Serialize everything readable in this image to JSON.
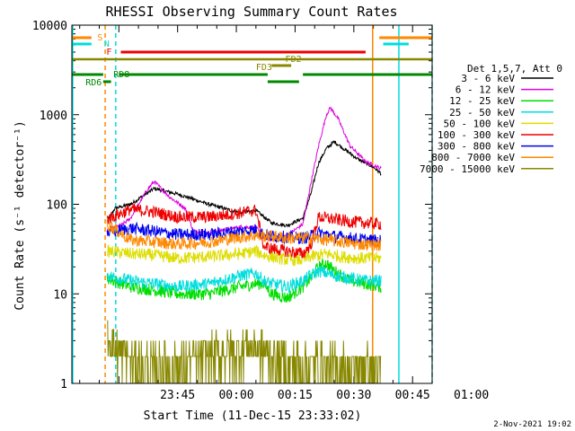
{
  "chart_data": {
    "type": "line",
    "title": "RHESSI Observing Summary Count Rates",
    "xlabel": "Start Time (11-Dec-15 23:33:02)",
    "ylabel": "Count Rate (s⁻¹ detector⁻¹)",
    "y_scale": "log",
    "ylim": [
      1,
      10000
    ],
    "xlim_minutes": [
      -15,
      77
    ],
    "x_tick_labels": [
      "23:45",
      "00:00",
      "00:15",
      "00:30",
      "00:45",
      "01:00"
    ],
    "x_tick_minutes": [
      12,
      27,
      42,
      57,
      72,
      87
    ],
    "y_tick_labels": [
      "1",
      "10",
      "100",
      "1000",
      "10000"
    ],
    "y_tick_values": [
      1,
      10,
      100,
      1000,
      10000
    ],
    "legend_title": "Det 1,5,7, Att 0",
    "legend_position": "right",
    "timestamp": "2-Nov-2021 19:02",
    "series": [
      {
        "name": "3 - 6 keV",
        "color": "#000000",
        "points": [
          [
            -6,
            65
          ],
          [
            -4,
            90
          ],
          [
            0,
            100
          ],
          [
            6,
            150
          ],
          [
            12,
            130
          ],
          [
            20,
            100
          ],
          [
            28,
            80
          ],
          [
            32,
            85
          ],
          [
            36,
            62
          ],
          [
            40,
            58
          ],
          [
            44,
            70
          ],
          [
            46,
            130
          ],
          [
            48,
            290
          ],
          [
            50,
            420
          ],
          [
            52,
            500
          ],
          [
            55,
            400
          ],
          [
            58,
            320
          ],
          [
            62,
            260
          ],
          [
            64,
            220
          ]
        ]
      },
      {
        "name": "6 - 12 keV",
        "color": "#dd00dd",
        "points": [
          [
            -6,
            50
          ],
          [
            -2,
            60
          ],
          [
            0,
            70
          ],
          [
            4,
            140
          ],
          [
            6,
            180
          ],
          [
            10,
            120
          ],
          [
            14,
            90
          ],
          [
            16,
            50
          ],
          [
            20,
            48
          ],
          [
            24,
            52
          ],
          [
            28,
            56
          ],
          [
            32,
            55
          ],
          [
            34,
            45
          ],
          [
            36,
            40
          ],
          [
            40,
            45
          ],
          [
            44,
            60
          ],
          [
            46,
            170
          ],
          [
            48,
            450
          ],
          [
            50,
            1000
          ],
          [
            51,
            1200
          ],
          [
            53,
            900
          ],
          [
            56,
            450
          ],
          [
            60,
            300
          ],
          [
            64,
            250
          ]
        ]
      },
      {
        "name": "12 - 25 keV",
        "color": "#00dd00",
        "points": [
          [
            -6,
            15
          ],
          [
            0,
            12
          ],
          [
            6,
            11
          ],
          [
            12,
            10
          ],
          [
            20,
            10
          ],
          [
            28,
            12
          ],
          [
            32,
            13
          ],
          [
            34,
            13
          ],
          [
            36,
            10
          ],
          [
            40,
            9
          ],
          [
            44,
            12
          ],
          [
            46,
            15
          ],
          [
            48,
            20
          ],
          [
            50,
            22
          ],
          [
            52,
            18
          ],
          [
            56,
            14
          ],
          [
            60,
            13
          ],
          [
            64,
            12
          ]
        ]
      },
      {
        "name": "25 - 50 keV",
        "color": "#00dddd",
        "points": [
          [
            -6,
            16
          ],
          [
            0,
            14
          ],
          [
            6,
            13
          ],
          [
            12,
            12
          ],
          [
            20,
            13
          ],
          [
            28,
            16
          ],
          [
            32,
            17
          ],
          [
            34,
            14
          ],
          [
            36,
            13
          ],
          [
            40,
            12
          ],
          [
            44,
            14
          ],
          [
            46,
            16
          ],
          [
            48,
            18
          ],
          [
            52,
            16
          ],
          [
            56,
            15
          ],
          [
            60,
            14
          ],
          [
            64,
            14
          ]
        ]
      },
      {
        "name": "50 - 100 keV",
        "color": "#dddd00",
        "points": [
          [
            -6,
            30
          ],
          [
            0,
            28
          ],
          [
            6,
            27
          ],
          [
            12,
            25
          ],
          [
            20,
            26
          ],
          [
            28,
            28
          ],
          [
            32,
            30
          ],
          [
            34,
            27
          ],
          [
            36,
            26
          ],
          [
            40,
            24
          ],
          [
            44,
            24
          ],
          [
            46,
            26
          ],
          [
            50,
            28
          ],
          [
            54,
            26
          ],
          [
            58,
            25
          ],
          [
            64,
            25
          ]
        ]
      },
      {
        "name": "100 - 300 keV",
        "color": "#ee0000",
        "points": [
          [
            -6,
            68
          ],
          [
            0,
            88
          ],
          [
            6,
            82
          ],
          [
            12,
            72
          ],
          [
            20,
            72
          ],
          [
            28,
            80
          ],
          [
            32,
            86
          ],
          [
            34,
            34
          ],
          [
            36,
            32
          ],
          [
            40,
            30
          ],
          [
            44,
            28
          ],
          [
            46,
            35
          ],
          [
            48,
            72
          ],
          [
            52,
            68
          ],
          [
            56,
            64
          ],
          [
            60,
            62
          ],
          [
            64,
            60
          ]
        ]
      },
      {
        "name": "300 - 800 keV",
        "color": "#0000ee",
        "points": [
          [
            -6,
            48
          ],
          [
            0,
            54
          ],
          [
            6,
            50
          ],
          [
            12,
            46
          ],
          [
            20,
            46
          ],
          [
            28,
            50
          ],
          [
            32,
            52
          ],
          [
            34,
            46
          ],
          [
            36,
            44
          ],
          [
            40,
            43
          ],
          [
            44,
            42
          ],
          [
            46,
            44
          ],
          [
            48,
            48
          ],
          [
            52,
            44
          ],
          [
            56,
            42
          ],
          [
            60,
            40
          ],
          [
            64,
            39
          ]
        ]
      },
      {
        "name": "800 - 7000 keV",
        "color": "#ff8800",
        "points": [
          [
            -6,
            60
          ],
          [
            0,
            40
          ],
          [
            6,
            38
          ],
          [
            12,
            36
          ],
          [
            20,
            38
          ],
          [
            28,
            43
          ],
          [
            32,
            45
          ],
          [
            34,
            44
          ],
          [
            36,
            44
          ],
          [
            40,
            42
          ],
          [
            44,
            42
          ],
          [
            46,
            42
          ],
          [
            50,
            40
          ],
          [
            54,
            38
          ],
          [
            58,
            36
          ],
          [
            64,
            35
          ]
        ]
      },
      {
        "name": "7000 - 15000 keV",
        "color": "#888800",
        "points": [
          [
            -6,
            4
          ],
          [
            -4,
            2.5
          ],
          [
            0,
            1.8
          ],
          [
            6,
            1.5
          ],
          [
            12,
            1.6
          ],
          [
            18,
            1.9
          ],
          [
            24,
            2.2
          ],
          [
            30,
            2.5
          ],
          [
            34,
            2.3
          ],
          [
            38,
            1.8
          ],
          [
            44,
            1.6
          ],
          [
            50,
            1.6
          ],
          [
            56,
            1.5
          ],
          [
            64,
            1.5
          ]
        ]
      }
    ],
    "state_bars": {
      "labels": {
        "S": "S",
        "N": "N",
        "F": "F",
        "FD2": "FD2",
        "FD3": "FD3",
        "RD6": "RD6",
        "RD8": "RD8"
      }
    }
  }
}
